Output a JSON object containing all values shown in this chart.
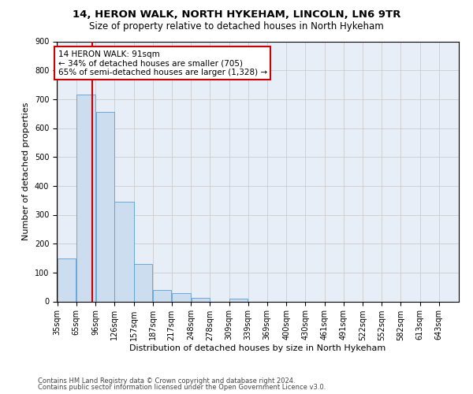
{
  "title1": "14, HERON WALK, NORTH HYKEHAM, LINCOLN, LN6 9TR",
  "title2": "Size of property relative to detached houses in North Hykeham",
  "xlabel": "Distribution of detached houses by size in North Hykeham",
  "ylabel": "Number of detached properties",
  "footer1": "Contains HM Land Registry data © Crown copyright and database right 2024.",
  "footer2": "Contains public sector information licensed under the Open Government Licence v3.0.",
  "annotation_title": "14 HERON WALK: 91sqm",
  "annotation_line1": "← 34% of detached houses are smaller (705)",
  "annotation_line2": "65% of semi-detached houses are larger (1,328) →",
  "property_size_sqm": 91,
  "bar_categories": [
    "35sqm",
    "65sqm",
    "96sqm",
    "126sqm",
    "157sqm",
    "187sqm",
    "217sqm",
    "248sqm",
    "278sqm",
    "309sqm",
    "339sqm",
    "369sqm",
    "400sqm",
    "430sqm",
    "461sqm",
    "491sqm",
    "522sqm",
    "552sqm",
    "582sqm",
    "613sqm",
    "643sqm"
  ],
  "bar_values": [
    150,
    715,
    655,
    345,
    130,
    40,
    30,
    12,
    0,
    10,
    0,
    0,
    0,
    0,
    0,
    0,
    0,
    0,
    0,
    0,
    0
  ],
  "bin_edges_sqm": [
    35,
    65,
    96,
    126,
    157,
    187,
    217,
    248,
    278,
    309,
    339,
    369,
    400,
    430,
    461,
    491,
    522,
    552,
    582,
    613,
    643,
    674
  ],
  "bar_color": "#ccddf0",
  "bar_edge_color": "#5a9fd4",
  "vline_color": "#cc0000",
  "vline_x": 91,
  "annotation_box_color": "#cc0000",
  "annotation_box_facecolor": "white",
  "ylim": [
    0,
    900
  ],
  "yticks": [
    0,
    100,
    200,
    300,
    400,
    500,
    600,
    700,
    800,
    900
  ],
  "grid_color": "#cccccc",
  "bg_color": "#e8eef7",
  "title1_fontsize": 9.5,
  "title2_fontsize": 8.5,
  "ylabel_fontsize": 8,
  "xlabel_fontsize": 8,
  "tick_fontsize": 7,
  "footer_fontsize": 6,
  "annotation_fontsize": 7.5
}
